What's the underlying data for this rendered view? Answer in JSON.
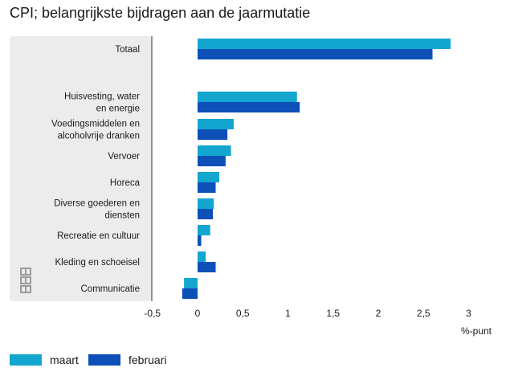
{
  "title": "CPI; belangrijkste bijdragen aan de jaarmutatie",
  "colors": {
    "maart": "#13a6cf",
    "februari": "#0c50b8",
    "panel": "#ececec",
    "axis": "#333333",
    "grid": "#d9d9d9"
  },
  "legend": [
    {
      "label": "maart",
      "color": "#13a6cf"
    },
    {
      "label": "februari",
      "color": "#0c50b8"
    }
  ],
  "chart_data": {
    "type": "bar",
    "orientation": "horizontal",
    "title": "CPI; belangrijkste bijdragen aan de jaarmutatie",
    "xlabel": "%-punt",
    "xlim": [
      -0.5,
      3
    ],
    "xticks": [
      "-0,5",
      "0",
      "0,5",
      "1",
      "1,5",
      "2",
      "2,5",
      "3"
    ],
    "xtick_values": [
      -0.5,
      0,
      0.5,
      1,
      1.5,
      2,
      2.5,
      3
    ],
    "categories": [
      [
        "Totaal"
      ],
      [
        "Huisvesting, water",
        "en energie"
      ],
      [
        "Voedingsmiddelen en",
        "alcoholvrije dranken"
      ],
      [
        "Vervoer"
      ],
      [
        "Horeca"
      ],
      [
        "Diverse goederen en",
        "diensten"
      ],
      [
        "Recreatie en cultuur"
      ],
      [
        "Kleding en schoeisel"
      ],
      [
        "Communicatie"
      ]
    ],
    "series": [
      {
        "name": "maart",
        "values": [
          2.8,
          1.1,
          0.4,
          0.37,
          0.24,
          0.18,
          0.14,
          0.09,
          -0.15
        ]
      },
      {
        "name": "februari",
        "values": [
          2.6,
          1.13,
          0.33,
          0.31,
          0.2,
          0.17,
          0.04,
          0.2,
          -0.17
        ]
      }
    ]
  }
}
